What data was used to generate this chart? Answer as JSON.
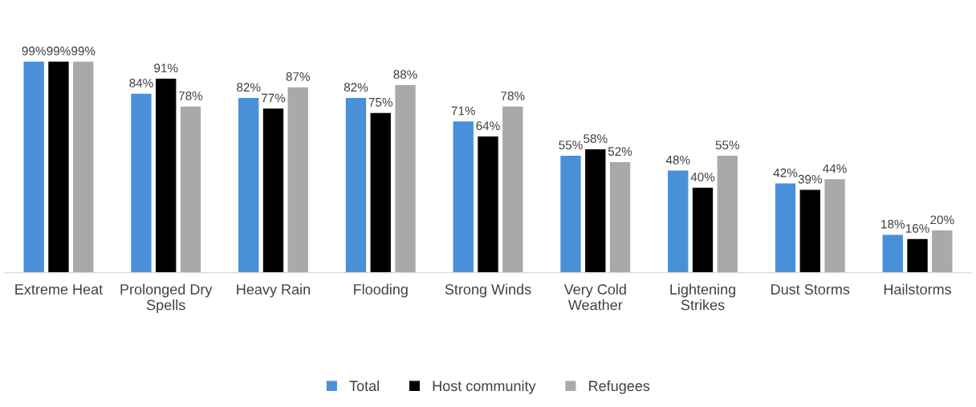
{
  "chart_data": {
    "type": "bar",
    "categories": [
      "Extreme Heat",
      "Prolonged Dry\nSpells",
      "Heavy Rain",
      "Flooding",
      "Strong Winds",
      "Very Cold\nWeather",
      "Lightening\nStrikes",
      "Dust Storms",
      "Hailstorms"
    ],
    "series": [
      {
        "name": "Total",
        "color": "#4a90d9",
        "values": [
          99,
          84,
          82,
          82,
          71,
          55,
          48,
          42,
          18
        ],
        "value_labels": [
          "99%",
          "84%",
          "82%",
          "82%",
          "71%",
          "55%",
          "48%",
          "42%",
          "18%"
        ]
      },
      {
        "name": "Host community",
        "color": "#000000",
        "values": [
          99,
          91,
          77,
          75,
          64,
          58,
          40,
          39,
          16
        ],
        "value_labels": [
          "99%",
          "91%",
          "77%",
          "75%",
          "64%",
          "58%",
          "40%",
          "39%",
          "16%"
        ]
      },
      {
        "name": "Refugees",
        "color": "#a9a9a9",
        "values": [
          99,
          78,
          87,
          88,
          78,
          52,
          55,
          44,
          20
        ],
        "value_labels": [
          "99%",
          "78%",
          "87%",
          "88%",
          "78%",
          "52%",
          "55%",
          "44%",
          "20%"
        ]
      }
    ],
    "legend": "bottom",
    "grid": false
  }
}
